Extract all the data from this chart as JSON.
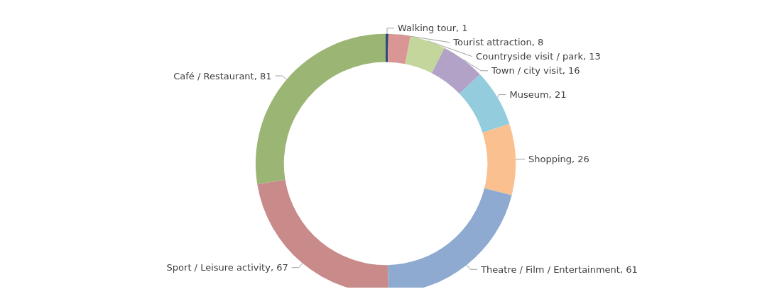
{
  "chart_data": {
    "type": "donut",
    "categories": [
      "Walking tour, 1",
      "Tourist attraction, 8",
      "Countryside visit / park, 13",
      "Town / city visit, 16",
      "Museum, 21",
      "Shopping, 26",
      "Theatre / Film / Entertainment, 61",
      "Sport / Leisure activity, 67",
      "Café / Restaurant, 81"
    ],
    "values": [
      1,
      8,
      13,
      16,
      21,
      26,
      61,
      67,
      81
    ],
    "colors": [
      "#2e4a7a",
      "#d99694",
      "#c3d69b",
      "#b3a2c7",
      "#93cddd",
      "#fac090",
      "#8eaad0",
      "#c98a8a",
      "#9bb574"
    ],
    "legend": false
  }
}
